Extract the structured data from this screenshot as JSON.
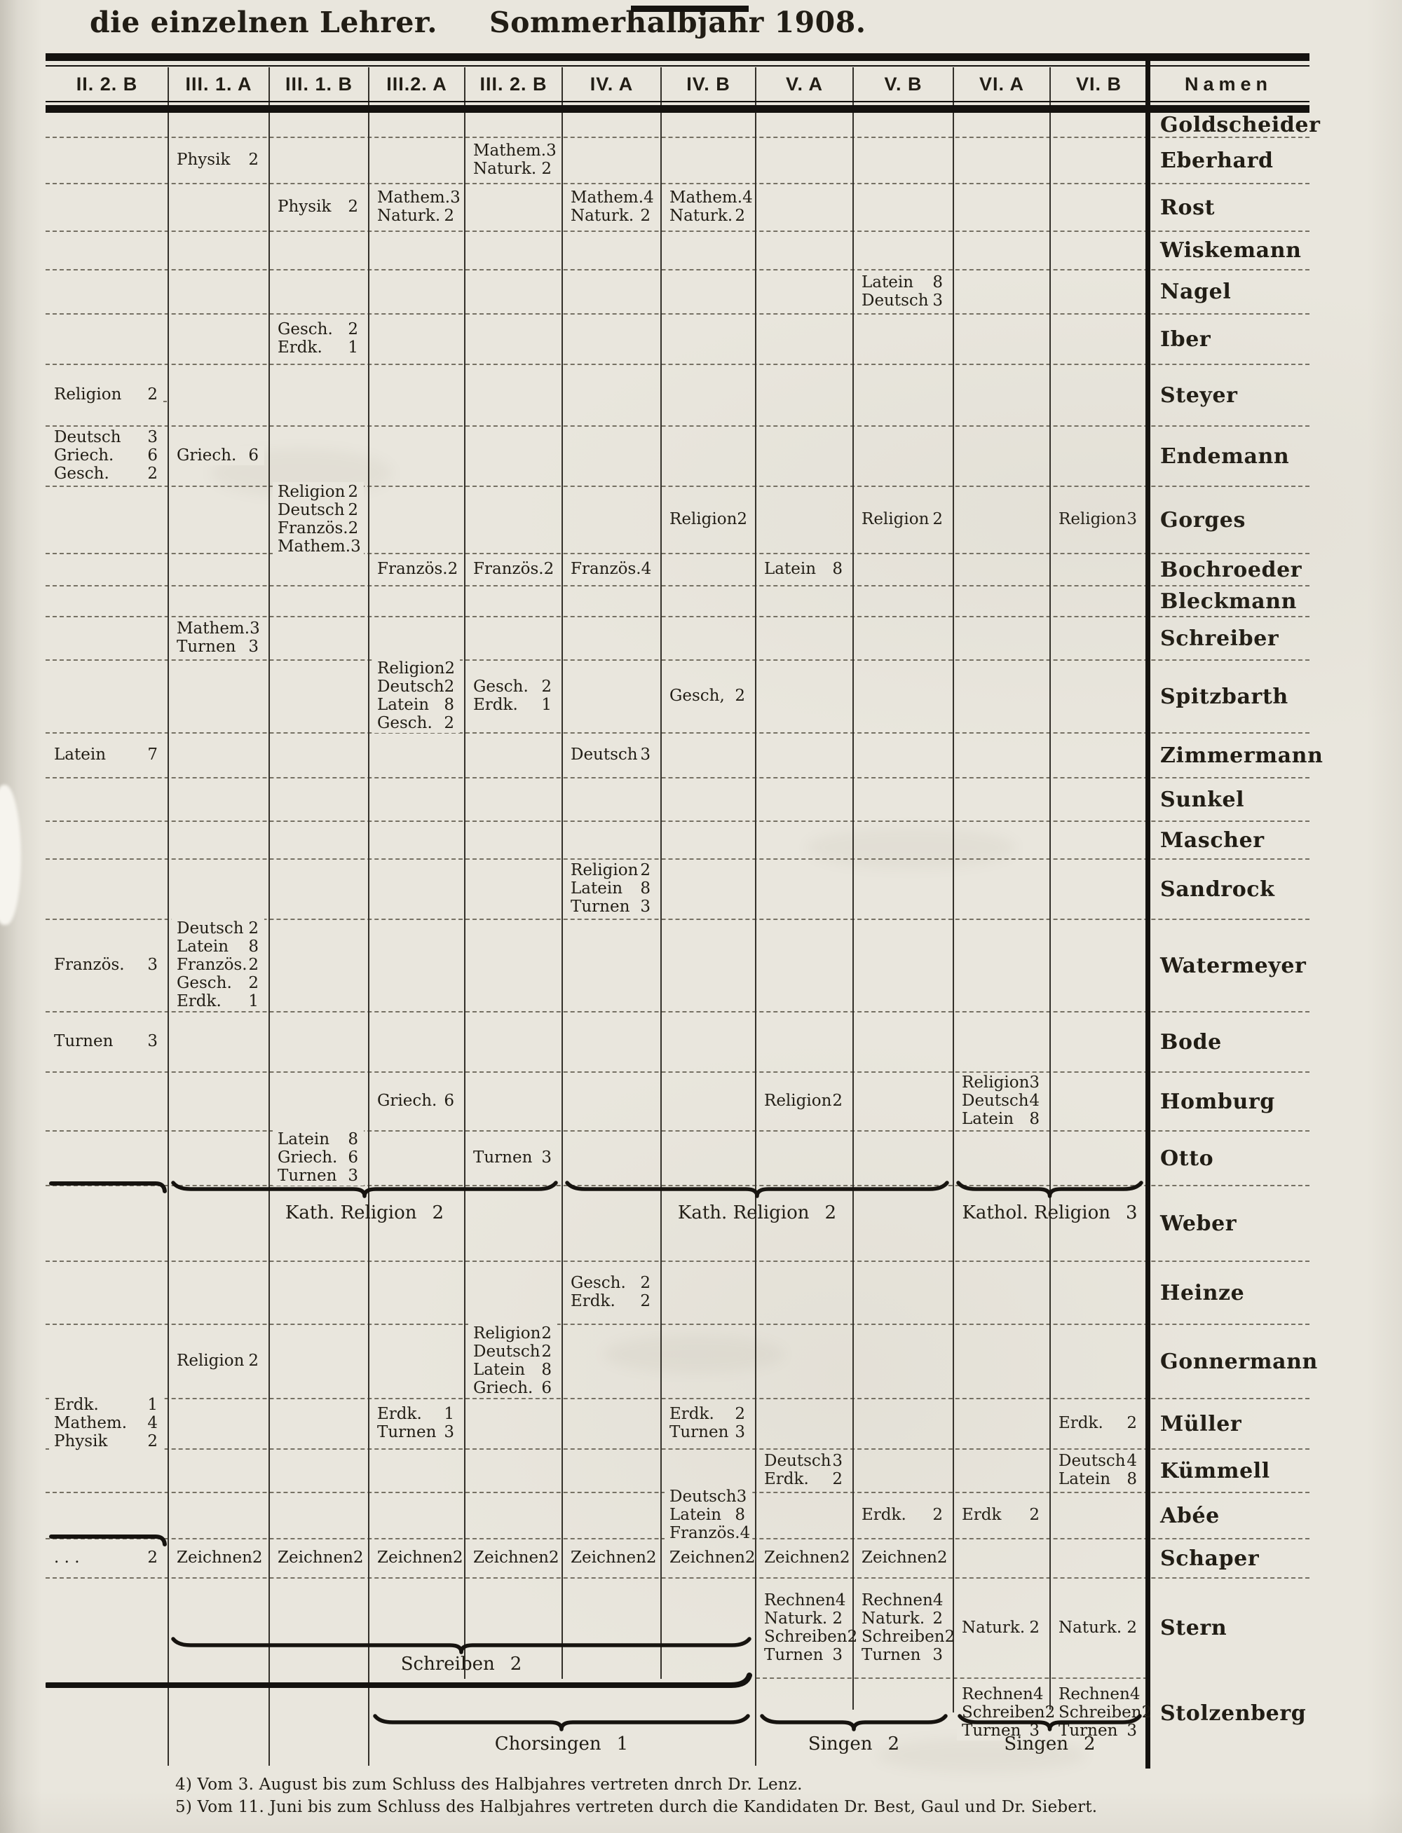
{
  "page": {
    "title_left": "die einzelnen Lehrer.",
    "title_right": "Sommerhalbjahr 1908."
  },
  "columns": [
    "II. 2. B",
    "III. 1. A",
    "III. 1. B",
    "III.2. A",
    "III. 2. B",
    "IV. A",
    "IV. B",
    "V. A",
    "V. B",
    "VI. A",
    "VI. B",
    "Namen"
  ],
  "rows": [
    {
      "name": "Goldscheider",
      "cells": {}
    },
    {
      "name": "Eberhard",
      "cells": {
        "1": [
          [
            "Physik",
            "2"
          ]
        ],
        "4": [
          [
            "Mathem.",
            "3"
          ],
          [
            "Naturk.",
            "2"
          ]
        ]
      }
    },
    {
      "name": "Rost",
      "cells": {
        "2": [
          [
            "Physik",
            "2"
          ]
        ],
        "3": [
          [
            "Mathem.",
            "3"
          ],
          [
            "Naturk.",
            "2"
          ]
        ],
        "5": [
          [
            "Mathem.",
            "4"
          ],
          [
            "Naturk.",
            "2"
          ]
        ],
        "6": [
          [
            "Mathem.",
            "4"
          ],
          [
            "Naturk.",
            "2"
          ]
        ]
      }
    },
    {
      "name": "Wiskemann",
      "cells": {}
    },
    {
      "name": "Nagel",
      "cells": {
        "8": [
          [
            "Latein",
            "8"
          ],
          [
            "Deutsch",
            "3"
          ]
        ]
      }
    },
    {
      "name": "Iber",
      "cells": {
        "2": [
          [
            "Gesch.",
            "2"
          ],
          [
            "Erdk.",
            "1"
          ]
        ]
      }
    },
    {
      "name": "Steyer",
      "cells": {
        "0": [
          [
            "Religion",
            "2"
          ]
        ]
      }
    },
    {
      "name": "Endemann",
      "cells": {
        "0": [
          [
            "Deutsch",
            "3"
          ],
          [
            "Griech.",
            "6"
          ],
          [
            "Gesch.",
            "2"
          ]
        ],
        "1": [
          [
            "Griech.",
            "6"
          ]
        ]
      }
    },
    {
      "name": "Gorges",
      "cells": {
        "2": [
          [
            "Religion",
            "2"
          ],
          [
            "Deutsch",
            "2"
          ],
          [
            "Französ.",
            "2"
          ],
          [
            "Mathem.",
            "3"
          ]
        ],
        "6": [
          [
            "Religion",
            "2"
          ]
        ],
        "8": [
          [
            "Religion",
            "2"
          ]
        ],
        "10": [
          [
            "Religion",
            "3"
          ]
        ]
      }
    },
    {
      "name": "Bochroeder",
      "cells": {
        "3": [
          [
            "Französ.",
            "2"
          ]
        ],
        "4": [
          [
            "Französ.",
            "2"
          ]
        ],
        "5": [
          [
            "Französ.",
            "4"
          ]
        ],
        "7": [
          [
            "Latein",
            "8"
          ]
        ]
      }
    },
    {
      "name": "Bleckmann",
      "cells": {}
    },
    {
      "name": "Schreiber",
      "cells": {
        "1": [
          [
            "Mathem.",
            "3"
          ],
          [
            "Turnen",
            "3"
          ]
        ]
      }
    },
    {
      "name": "Spitzbarth",
      "cells": {
        "3": [
          [
            "Religion",
            "2"
          ],
          [
            "Deutsch",
            "2"
          ],
          [
            "Latein",
            "8"
          ],
          [
            "Gesch.",
            "2"
          ]
        ],
        "4": [
          [
            "Gesch.",
            "2"
          ],
          [
            "Erdk.",
            "1"
          ]
        ],
        "6": [
          [
            "Gesch,",
            "2"
          ]
        ]
      }
    },
    {
      "name": "Zimmermann",
      "cells": {
        "0": [
          [
            "Latein",
            "7"
          ]
        ],
        "5": [
          [
            "Deutsch",
            "3"
          ]
        ]
      }
    },
    {
      "name": "Sunkel",
      "cells": {}
    },
    {
      "name": "Mascher",
      "cells": {}
    },
    {
      "name": "Sandrock",
      "cells": {
        "5": [
          [
            "Religion",
            "2"
          ],
          [
            "Latein",
            "8"
          ],
          [
            "Turnen",
            "3"
          ]
        ]
      }
    },
    {
      "name": "Watermeyer",
      "cells": {
        "0": [
          [
            "Französ.",
            "3"
          ]
        ],
        "1": [
          [
            "Deutsch",
            "2"
          ],
          [
            "Latein",
            "8"
          ],
          [
            "Französ.",
            "2"
          ],
          [
            "Gesch.",
            "2"
          ],
          [
            "Erdk.",
            "1"
          ]
        ]
      }
    },
    {
      "name": "Bode",
      "cells": {
        "0": [
          [
            "Turnen",
            "3"
          ]
        ]
      }
    },
    {
      "name": "Homburg",
      "cells": {
        "3": [
          [
            "Griech.",
            "6"
          ]
        ],
        "7": [
          [
            "Religion",
            "2"
          ]
        ],
        "9": [
          [
            "Religion",
            "3"
          ],
          [
            "Deutsch",
            "4"
          ],
          [
            "Latein",
            "8"
          ]
        ]
      }
    },
    {
      "name": "Otto",
      "cells": {
        "2": [
          [
            "Latein",
            "8"
          ],
          [
            "Griech.",
            "6"
          ],
          [
            "Turnen",
            "3"
          ]
        ],
        "4": [
          [
            "Turnen",
            "3"
          ]
        ]
      }
    },
    {
      "name": "Weber",
      "type": "braces",
      "cells": {}
    },
    {
      "name": "Heinze",
      "cells": {
        "5": [
          [
            "Gesch.",
            "2"
          ],
          [
            "Erdk.",
            "2"
          ]
        ]
      }
    },
    {
      "name": "Gonnermann",
      "cells": {
        "1": [
          [
            "Religion",
            "2"
          ]
        ],
        "4": [
          [
            "Religion",
            "2"
          ],
          [
            "Deutsch",
            "2"
          ],
          [
            "Latein",
            "8"
          ],
          [
            "Griech.",
            "6"
          ]
        ]
      }
    },
    {
      "name": "Müller",
      "cells": {
        "0": [
          [
            "Erdk.",
            "1"
          ],
          [
            "Mathem.",
            "4"
          ],
          [
            "Physik",
            "2"
          ]
        ],
        "3": [
          [
            "Erdk.",
            "1"
          ],
          [
            "Turnen",
            "3"
          ]
        ],
        "6": [
          [
            "Erdk.",
            "2"
          ],
          [
            "Turnen",
            "3"
          ]
        ],
        "10": [
          [
            "Erdk.",
            "2"
          ]
        ]
      }
    },
    {
      "name": "Kümmell",
      "cells": {
        "7": [
          [
            "Deutsch",
            "3"
          ],
          [
            "Erdk.",
            "2"
          ]
        ],
        "10": [
          [
            "Deutsch",
            "4"
          ],
          [
            "Latein",
            "8"
          ]
        ]
      }
    },
    {
      "name": "Abée",
      "cells": {
        "6": [
          [
            "Deutsch",
            "3"
          ],
          [
            "Latein",
            "8"
          ],
          [
            "Französ.",
            "4"
          ]
        ],
        "8": [
          [
            "Erdk.",
            "2"
          ]
        ],
        "9": [
          [
            "Erdk",
            "2"
          ]
        ]
      }
    },
    {
      "name": "Schaper",
      "cells": {
        "0": [
          [
            ". . .",
            "2"
          ]
        ],
        "1": [
          [
            "Zeichnen",
            "2"
          ]
        ],
        "2": [
          [
            "Zeichnen",
            "2"
          ]
        ],
        "3": [
          [
            "Zeichnen",
            "2"
          ]
        ],
        "4": [
          [
            "Zeichnen",
            "2"
          ]
        ],
        "5": [
          [
            "Zeichnen",
            "2"
          ]
        ],
        "6": [
          [
            "Zeichnen",
            "2"
          ]
        ],
        "7": [
          [
            "Zeichnen",
            "2"
          ]
        ],
        "8": [
          [
            "Zeichnen",
            "2"
          ]
        ]
      }
    },
    {
      "name": "Stern",
      "cells": {
        "7": [
          [
            "Rechnen",
            "4"
          ],
          [
            "Naturk.",
            "2"
          ],
          [
            "Schreiben",
            "2"
          ],
          [
            "Turnen",
            "3"
          ]
        ],
        "8": [
          [
            "Rechnen",
            "4"
          ],
          [
            "Naturk.",
            "2"
          ],
          [
            "Schreiben",
            "2"
          ],
          [
            "Turnen",
            "3"
          ]
        ],
        "9": [
          [
            "Naturk.",
            "2"
          ]
        ],
        "10": [
          [
            "Naturk.",
            "2"
          ]
        ]
      }
    },
    {
      "name": "Stolzenberg",
      "cells": {
        "9": [
          [
            "Rechnen",
            "4"
          ],
          [
            "Schreiben",
            "2"
          ],
          [
            "Turnen",
            "3"
          ]
        ],
        "10": [
          [
            "Rechnen",
            "4"
          ],
          [
            "Schreiben",
            "2"
          ],
          [
            "Turnen",
            "3"
          ]
        ]
      }
    }
  ],
  "group_rows": {
    "religion": [
      {
        "cols": [
          1,
          5
        ],
        "label": "Kath. Religion",
        "value": "2"
      },
      {
        "cols": [
          5,
          9
        ],
        "label": "Kath. Religion",
        "value": "2"
      },
      {
        "cols": [
          9,
          11
        ],
        "label": "Kathol. Religion",
        "value": "3"
      }
    ],
    "schreiben": {
      "cols": [
        1,
        7
      ],
      "label": "Schreiben",
      "value": "2"
    },
    "footer": [
      {
        "cols": [
          3,
          7
        ],
        "label": "Chorsingen",
        "value": "1"
      },
      {
        "cols": [
          7,
          9
        ],
        "label": "Singen",
        "value": "2"
      },
      {
        "cols": [
          9,
          11
        ],
        "label": "Singen",
        "value": "2"
      }
    ]
  },
  "footnotes": [
    "4) Vom 3. August bis zum Schluss des Halbjahres vertreten dnrch Dr. Lenz.",
    "5) Vom 11. Juni bis zum Schluss des Halbjahres vertreten durch die Kandidaten Dr. Best, Gaul und Dr. Siebert."
  ]
}
